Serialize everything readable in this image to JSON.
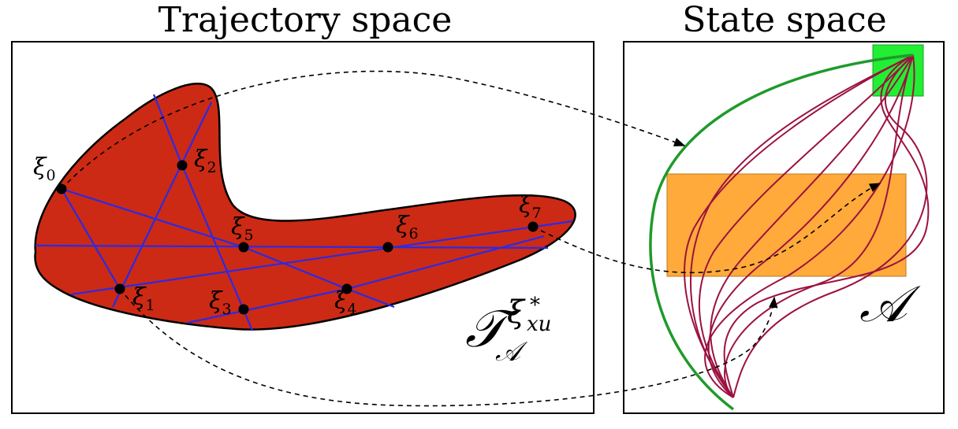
{
  "left_panel": {
    "title": "Trajectory space",
    "set_label": {
      "main": "𝒯",
      "sub": "𝒜",
      "sup_base": "ξ",
      "sup_sub": "xu",
      "sup_star": "*"
    },
    "points": [
      {
        "base": "ξ",
        "index": "0"
      },
      {
        "base": "ξ",
        "index": "1"
      },
      {
        "base": "ξ",
        "index": "2"
      },
      {
        "base": "ξ",
        "index": "3"
      },
      {
        "base": "ξ",
        "index": "4"
      },
      {
        "base": "ξ",
        "index": "5"
      },
      {
        "base": "ξ",
        "index": "6"
      },
      {
        "base": "ξ",
        "index": "7"
      }
    ]
  },
  "right_panel": {
    "title": "State space",
    "set_label": "𝒜"
  },
  "colors": {
    "blob_fill": "#cc2a14",
    "blob_line": "#2a2ae6",
    "goal_box": "#22ee33",
    "constraint_box": "#ffaa3a",
    "trajectory": "#9c1240",
    "optimal_trajectory": "#1f9a2a",
    "arrow": "#000000"
  }
}
